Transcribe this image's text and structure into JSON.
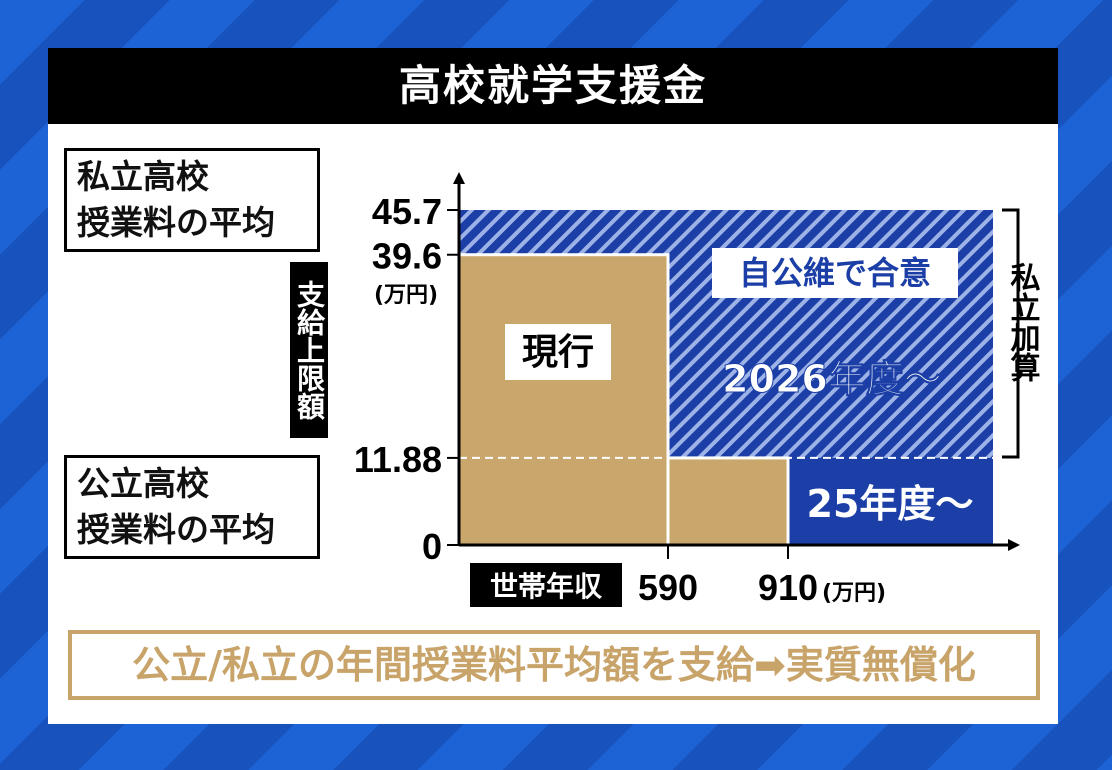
{
  "title": "高校就学支援金",
  "callouts": {
    "private": [
      "私立高校",
      "授業料の平均"
    ],
    "public": [
      "公立高校",
      "授業料の平均"
    ]
  },
  "banner": "公立/私立の年間授業料平均額を支給➡実質無償化",
  "colors": {
    "current": "#c9a66b",
    "new": "#1b3fa6",
    "hatch": "#9db2e6"
  },
  "chart_data": {
    "type": "step-area",
    "ylabel": "支給上限額",
    "yunit": "(万円)",
    "xlabel": "世帯年収",
    "xunit": "(万円)",
    "y_ticks": [
      "45.7",
      "39.6",
      "11.88",
      "0"
    ],
    "x_ticks": [
      "590",
      "910"
    ],
    "series": [
      {
        "name": "現行",
        "segments": [
          {
            "x": [
              "0",
              "590"
            ],
            "y": 39.6
          },
          {
            "x": [
              "590",
              "910"
            ],
            "y": 11.88
          }
        ]
      },
      {
        "name": "25年度～",
        "segments": [
          {
            "x": [
              "910",
              "end"
            ],
            "y": 11.88
          }
        ]
      },
      {
        "name": "2026年度～",
        "segments": [
          {
            "x": [
              "0",
              "end"
            ],
            "y": 45.7
          }
        ]
      }
    ],
    "annotations": {
      "agreement": "自公維で合意",
      "current": "現行",
      "fy2026": "2026年度～",
      "fy25": "25年度～",
      "private_add": "私立加算"
    }
  }
}
